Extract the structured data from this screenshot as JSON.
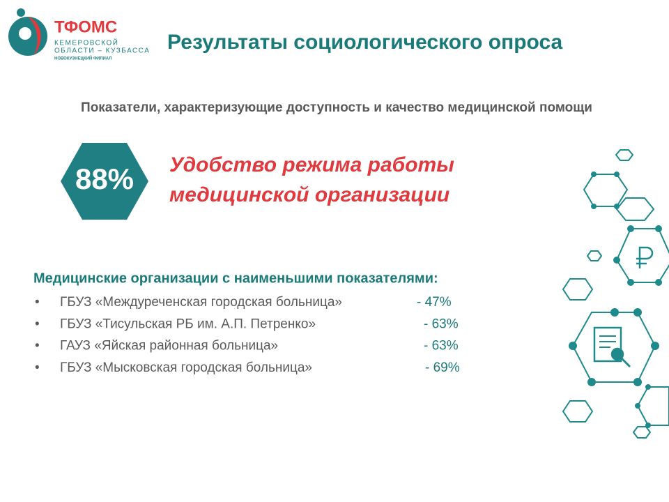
{
  "logo": {
    "brand": "ТФОМС",
    "line1": "КЕМЕРОВСКОЙ",
    "line2": "ОБЛАСТИ – КУЗБАССА",
    "branch": "НОВОКУЗНЕЦКИЙ ФИЛИАЛ"
  },
  "title": "Результаты социологического опроса",
  "subtitle": "Показатели, характеризующие доступность и качество  медицинской помощи",
  "highlight": {
    "value": "88%",
    "lines": [
      "Удобство режима работы",
      "медицинской организации"
    ]
  },
  "list": {
    "heading": "Медицинские организации с наименьшими показателями:",
    "items": [
      {
        "bullet": "•",
        "name": "ГБУЗ «Междуреченская городская больница»",
        "value": "- 47%"
      },
      {
        "bullet": "•",
        "name": "ГБУЗ «Тисульская РБ им. А.П. Петренко»",
        "value": "- 63%"
      },
      {
        "bullet": "•",
        "name": "ГАУЗ «Яйская районная больница»",
        "value": "- 63%"
      },
      {
        "bullet": "•",
        "name": "ГБУЗ «Мысковская городская больница»",
        "value": "- 69%"
      }
    ]
  }
}
